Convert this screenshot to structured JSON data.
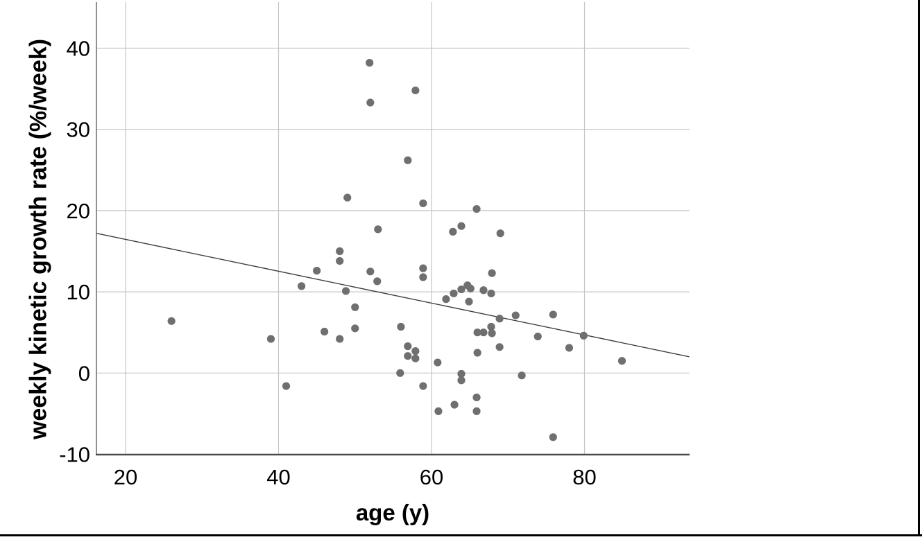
{
  "figure": {
    "background": "#ffffff",
    "outer_border_color": "#000000"
  },
  "chart_data": {
    "type": "scatter",
    "title": "",
    "xlabel": "age (y)",
    "ylabel": "weekly kinetic growth rate (%/week)",
    "x_ticks": [
      20,
      40,
      60,
      80
    ],
    "y_ticks": [
      40,
      30,
      20,
      10,
      0,
      -10
    ],
    "xlim": [
      16.2,
      93.7
    ],
    "ylim": [
      -10,
      45.7
    ],
    "grid": true,
    "legend_position": "none",
    "marker_color": "#6f6f6f",
    "grid_color": "#c6c6c6",
    "x_axis_color": "#4a4a4a",
    "y_axis_color": "#8f8f8f",
    "tick_label_color": "#000000",
    "regression_line": {
      "x1": 16.2,
      "y1": 17.2,
      "x2": 93.7,
      "y2": 2.0,
      "color": "#3f3f3f"
    },
    "points": [
      [
        26,
        6.4
      ],
      [
        39,
        4.2
      ],
      [
        41,
        -1.6
      ],
      [
        43,
        10.7
      ],
      [
        45,
        12.6
      ],
      [
        46,
        5.1
      ],
      [
        48,
        15.0
      ],
      [
        48,
        13.8
      ],
      [
        48,
        4.2
      ],
      [
        48.8,
        10.1
      ],
      [
        49,
        21.6
      ],
      [
        50,
        8.1
      ],
      [
        50,
        5.5
      ],
      [
        51.9,
        38.2
      ],
      [
        52,
        33.3
      ],
      [
        52,
        12.5
      ],
      [
        52.9,
        11.3
      ],
      [
        53,
        17.7
      ],
      [
        55.9,
        0.0
      ],
      [
        56,
        5.7
      ],
      [
        56.9,
        26.2
      ],
      [
        56.9,
        3.3
      ],
      [
        56.9,
        2.1
      ],
      [
        57.9,
        34.8
      ],
      [
        57.9,
        2.7
      ],
      [
        57.9,
        1.8
      ],
      [
        58.9,
        20.9
      ],
      [
        58.9,
        12.9
      ],
      [
        58.9,
        11.8
      ],
      [
        58.9,
        -1.6
      ],
      [
        60.8,
        1.3
      ],
      [
        60.9,
        -4.7
      ],
      [
        61.9,
        9.1
      ],
      [
        62.8,
        17.4
      ],
      [
        62.9,
        9.8
      ],
      [
        63,
        -3.9
      ],
      [
        63.9,
        18.1
      ],
      [
        63.9,
        10.3
      ],
      [
        63.9,
        -0.1
      ],
      [
        63.9,
        -0.9
      ],
      [
        64.7,
        10.8
      ],
      [
        65.1,
        10.4
      ],
      [
        64.9,
        8.8
      ],
      [
        65.9,
        20.2
      ],
      [
        66,
        5.0
      ],
      [
        66,
        2.5
      ],
      [
        65.9,
        -3.0
      ],
      [
        65.9,
        -4.7
      ],
      [
        66.8,
        10.2
      ],
      [
        66.8,
        5.0
      ],
      [
        67.9,
        12.3
      ],
      [
        67.8,
        9.8
      ],
      [
        67.8,
        5.7
      ],
      [
        67.9,
        4.9
      ],
      [
        69,
        17.2
      ],
      [
        68.9,
        6.7
      ],
      [
        68.9,
        3.2
      ],
      [
        71,
        7.1
      ],
      [
        71.8,
        -0.3
      ],
      [
        73.9,
        4.5
      ],
      [
        75.9,
        7.2
      ],
      [
        75.9,
        -7.9
      ],
      [
        78,
        3.1
      ],
      [
        79.9,
        4.6
      ],
      [
        84.9,
        1.5
      ]
    ]
  }
}
